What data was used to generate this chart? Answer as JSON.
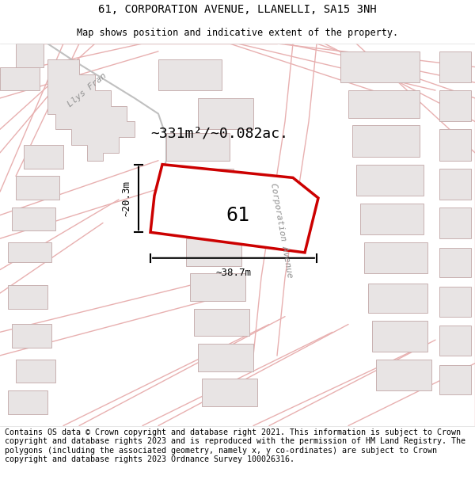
{
  "title_line1": "61, CORPORATION AVENUE, LLANELLI, SA15 3NH",
  "title_line2": "Map shows position and indicative extent of the property.",
  "footer_text": "Contains OS data © Crown copyright and database right 2021. This information is subject to Crown copyright and database rights 2023 and is reproduced with the permission of HM Land Registry. The polygons (including the associated geometry, namely x, y co-ordinates) are subject to Crown copyright and database rights 2023 Ordnance Survey 100026316.",
  "area_text": "~331m²/~0.082ac.",
  "width_text": "~38.7m",
  "height_text": "~20.3m",
  "label_61": "61",
  "street_label": "Corporation Avenue",
  "street_label2": "Llys Fran",
  "map_bg": "#ffffff",
  "road_outline_color": "#e8b0b0",
  "building_outline": "#c8b0b0",
  "building_fill": "#e8e4e4",
  "highlight_fill": "#ffffff",
  "highlight_outline": "#cc0000",
  "llys_fran_road_color": "#d0d0d0",
  "dim_color": "#222222",
  "title_fontsize": 10,
  "subtitle_fontsize": 9,
  "footer_fontsize": 7.2
}
